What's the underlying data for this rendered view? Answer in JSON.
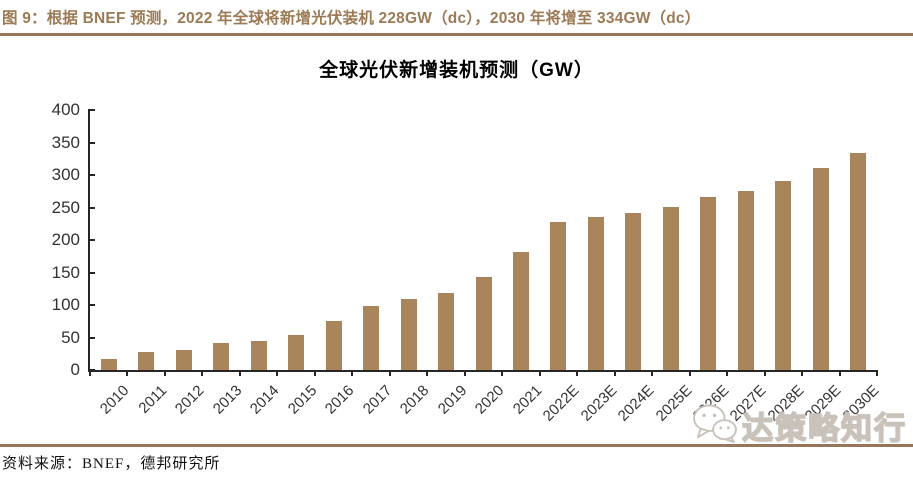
{
  "figure": {
    "caption": "图 9：根据 BNEF 预测，2022 年全球将新增光伏装机 228GW（dc），2030 年将增至 334GW（dc）"
  },
  "chart_data": {
    "type": "bar",
    "title": "全球光伏新增装机预测（GW）",
    "categories": [
      "2010",
      "2011",
      "2012",
      "2013",
      "2014",
      "2015",
      "2016",
      "2017",
      "2018",
      "2019",
      "2020",
      "2021",
      "2022E",
      "2023E",
      "2024E",
      "2025E",
      "2026E",
      "2027E",
      "2028E",
      "2029E",
      "2030E"
    ],
    "values": [
      17,
      28,
      31,
      41,
      44,
      54,
      75,
      98,
      109,
      118,
      143,
      182,
      228,
      236,
      241,
      251,
      266,
      276,
      291,
      311,
      334
    ],
    "xlabel": "",
    "ylabel": "",
    "ylim": [
      0,
      400
    ],
    "yticks": [
      0,
      50,
      100,
      150,
      200,
      250,
      300,
      350,
      400
    ],
    "grid": false,
    "legend": null,
    "bar_color": "#A9855B",
    "x_label_rotation_deg": -45
  },
  "footer": {
    "source": "资料来源：BNEF，德邦研究所"
  },
  "watermark": {
    "text": "达策略知行",
    "icon": "wechat-icon"
  },
  "colors": {
    "accent_brown": "#96755B",
    "caption_text": "#9B7A55",
    "bar": "#A9855B",
    "axis": "#262626",
    "tick_label": "#333333"
  }
}
